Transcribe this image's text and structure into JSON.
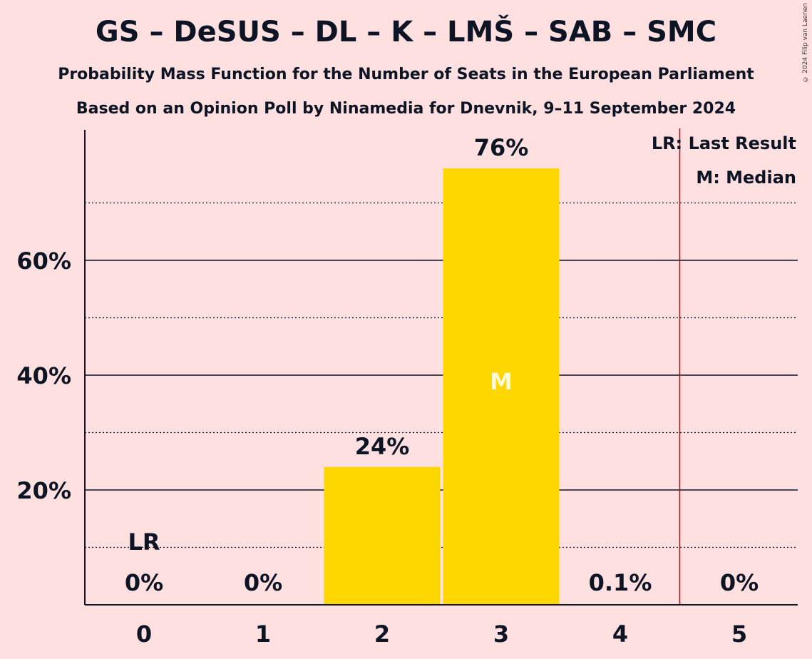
{
  "title": "GS – DeSUS – DL – K – LMŠ – SAB – SMC",
  "subtitle_1": "Probability Mass Function for the Number of Seats in the European Parliament",
  "subtitle_2": "Based on an Opinion Poll by Ninamedia for Dnevnik, 9–11 September 2024",
  "copyright": "© 2024 Filip van Laenen",
  "colors": {
    "bar": "#ffd700",
    "last_result_line": "#cc0000",
    "background": "#ffe0e0"
  },
  "legend": {
    "last_result": "LR: Last Result",
    "median": "M: Median"
  },
  "chart_data": {
    "type": "bar",
    "categories": [
      "0",
      "1",
      "2",
      "3",
      "4",
      "5"
    ],
    "values": [
      0,
      0,
      24,
      76,
      0.1,
      0
    ],
    "data_labels": [
      "0%",
      "0%",
      "24%",
      "76%",
      "0.1%",
      "0%"
    ],
    "yticks": [
      20,
      40,
      60
    ],
    "ytick_labels": [
      "20%",
      "40%",
      "60%"
    ],
    "minor_gridlines": [
      10,
      30,
      50,
      70
    ],
    "ylim": [
      0,
      82
    ],
    "last_result_category": "0",
    "last_result_label": "LR",
    "median_category": "3",
    "median_label": "M",
    "last_result_line_between": [
      "4",
      "5"
    ],
    "legend_position": "top-right"
  }
}
